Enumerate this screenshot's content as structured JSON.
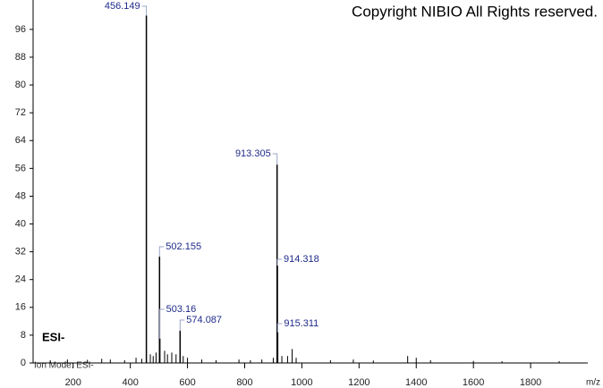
{
  "chart_data": {
    "type": "spectrum",
    "title": "Copyright NIBIO All Rights reserved.",
    "annotation": "ESI-",
    "footnote": "Ion Mode: ESI-",
    "x_label": "m/z",
    "x": [
      456.149,
      502.155,
      503.16,
      574.087,
      913.305,
      914.318,
      915.311
    ],
    "values": [
      100,
      30.6,
      7,
      9.3,
      57.1,
      28,
      8.8
    ],
    "minor_peaks": {
      "x": [
        120,
        180,
        250,
        300,
        330,
        380,
        420,
        440,
        470,
        480,
        490,
        520,
        530,
        545,
        560,
        585,
        600,
        650,
        700,
        780,
        820,
        860,
        900,
        930,
        950,
        966,
        980,
        1100,
        1180,
        1250,
        1370,
        1400,
        1450,
        1600,
        1700,
        1900
      ],
      "values": [
        0.8,
        1,
        0.9,
        1.2,
        1,
        0.8,
        1.5,
        1.2,
        2.5,
        2,
        3,
        3.5,
        2.5,
        3,
        2.5,
        2,
        1.5,
        1,
        0.8,
        1,
        0.8,
        1,
        1.5,
        2,
        2,
        4,
        1.5,
        0.8,
        1,
        0.7,
        2,
        1.5,
        0.8,
        0.6,
        0.5,
        0.5
      ]
    },
    "color": "#000000",
    "label_color": "#1f2a8a",
    "xlim": [
      60,
      2000
    ],
    "xticks": [
      200,
      400,
      600,
      800,
      1000,
      1200,
      1400,
      1600,
      1800
    ],
    "ylim": [
      0,
      102.4
    ],
    "yticks": [
      0,
      8,
      16,
      24,
      32,
      40,
      48,
      56,
      64,
      72,
      80,
      88,
      96
    ]
  }
}
